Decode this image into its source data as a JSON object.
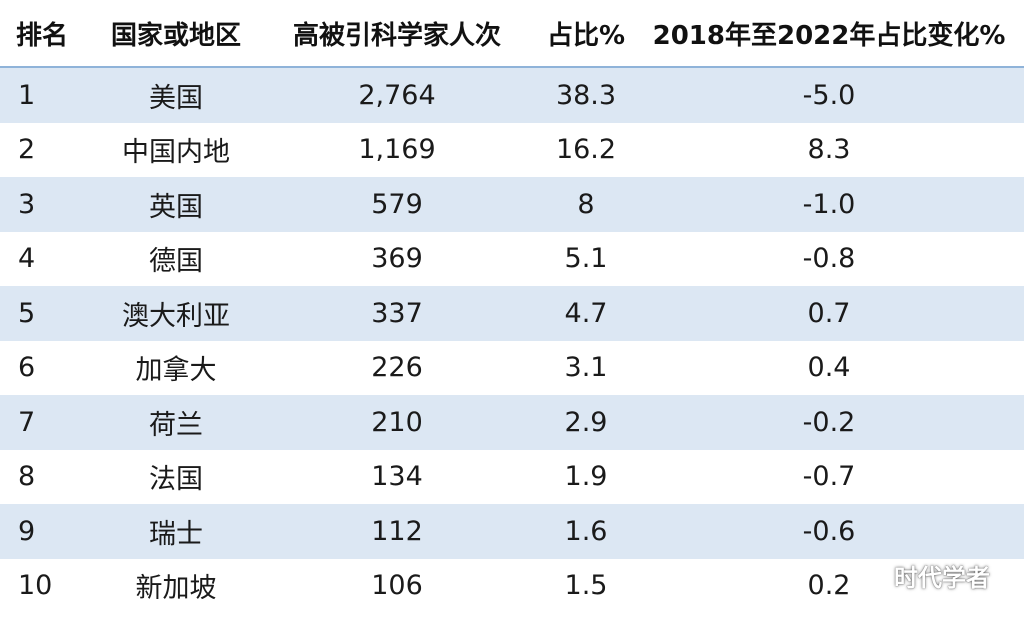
{
  "table": {
    "headers": {
      "rank": "排名",
      "country": "国家或地区",
      "count": "高被引科学家人次",
      "percent": "占比%",
      "change": "2018年至2022年占比变化%"
    },
    "rows": [
      {
        "rank": "1",
        "country": "美国",
        "count": "2,764",
        "percent": "38.3",
        "change": "-5.0"
      },
      {
        "rank": "2",
        "country": "中国内地",
        "count": "1,169",
        "percent": "16.2",
        "change": "8.3"
      },
      {
        "rank": "3",
        "country": "英国",
        "count": "579",
        "percent": "8",
        "change": "-1.0"
      },
      {
        "rank": "4",
        "country": "德国",
        "count": "369",
        "percent": "5.1",
        "change": "-0.8"
      },
      {
        "rank": "5",
        "country": "澳大利亚",
        "count": "337",
        "percent": "4.7",
        "change": "0.7"
      },
      {
        "rank": "6",
        "country": "加拿大",
        "count": "226",
        "percent": "3.1",
        "change": "0.4"
      },
      {
        "rank": "7",
        "country": "荷兰",
        "count": "210",
        "percent": "2.9",
        "change": "-0.2"
      },
      {
        "rank": "8",
        "country": "法国",
        "count": "134",
        "percent": "1.9",
        "change": "-0.7"
      },
      {
        "rank": "9",
        "country": "瑞士",
        "count": "112",
        "percent": "1.6",
        "change": "-0.6"
      },
      {
        "rank": "10",
        "country": "新加坡",
        "count": "106",
        "percent": "1.5",
        "change": "0.2"
      }
    ]
  },
  "watermark": {
    "text": "时代学者",
    "icon": "wechat-icon"
  },
  "colors": {
    "shaded_row": "#dce7f3",
    "header_rule": "#8fb3d9"
  }
}
